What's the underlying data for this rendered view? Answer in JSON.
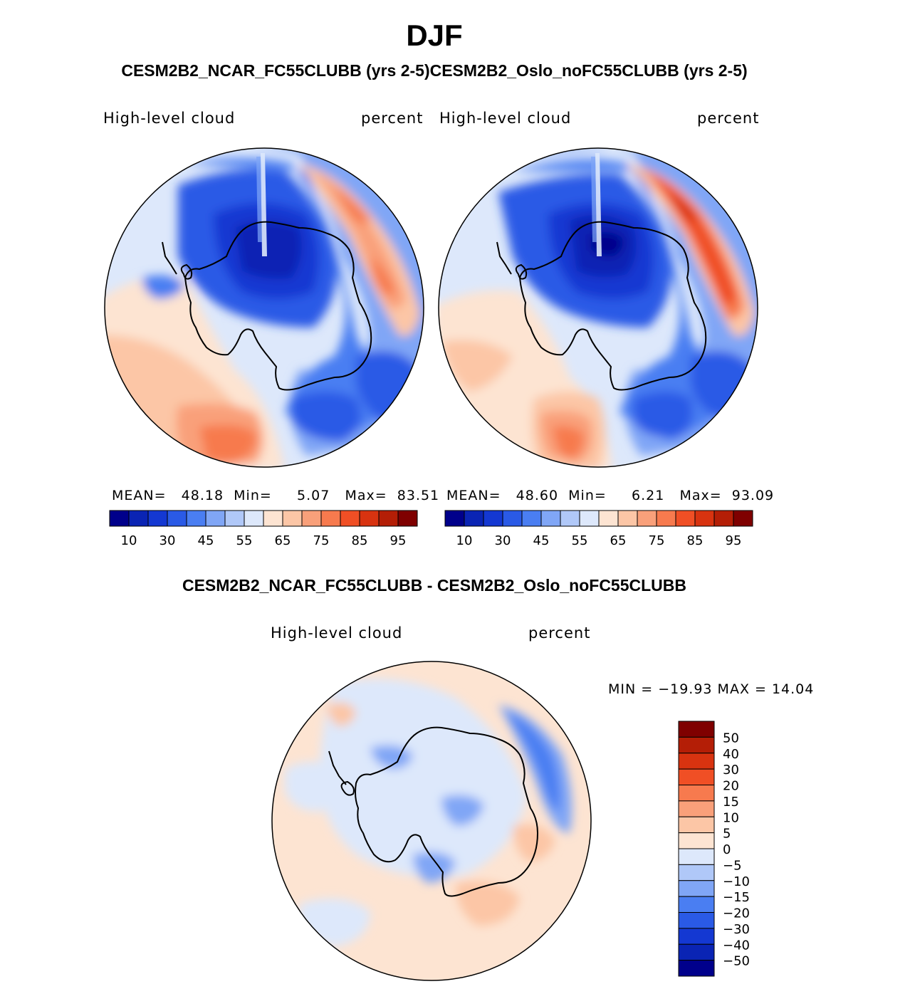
{
  "season": "DJF",
  "header": {
    "case_title": "CESM2B2_NCAR_FC55CLUBB (yrs 2-5)CESM2B2_Oslo_noFC55CLUBB (yrs 2-5)",
    "diff_title": "CESM2B2_NCAR_FC55CLUBB - CESM2B2_Oslo_noFC55CLUBB"
  },
  "panels": [
    {
      "variable": "High-level cloud",
      "units": "percent",
      "mean_label": "MEAN=",
      "mean_value": "48.18",
      "min_label": "Min=",
      "min_value": "5.07",
      "max_label": "Max=",
      "max_value": "83.51"
    },
    {
      "variable": "High-level cloud",
      "units": "percent",
      "mean_label": "MEAN=",
      "mean_value": "48.60",
      "min_label": "Min=",
      "min_value": "6.21",
      "max_label": "Max=",
      "max_value": "93.09"
    }
  ],
  "diff_panel": {
    "variable": "High-level cloud",
    "units": "percent",
    "stats_text": "MIN = −19.93 MAX =   14.04"
  },
  "colorbar_abs": {
    "colors": [
      "#00008b",
      "#0a24b4",
      "#1438d2",
      "#2a5ae6",
      "#4a7ef2",
      "#80a6f6",
      "#b0c8f8",
      "#dde8fb",
      "#fde4d2",
      "#fcc6a6",
      "#f9a07a",
      "#f77a4e",
      "#f04f25",
      "#d83310",
      "#b41e06",
      "#7f0000"
    ],
    "tick_labels": [
      "10",
      "30",
      "45",
      "55",
      "65",
      "75",
      "85",
      "95"
    ]
  },
  "colorbar_diff": {
    "colors": [
      "#00008b",
      "#0a24b4",
      "#1438d2",
      "#2a5ae6",
      "#4a7ef2",
      "#80a6f6",
      "#b0c8f8",
      "#dde8fb",
      "#fde4d2",
      "#fcc6a6",
      "#f9a07a",
      "#f77a4e",
      "#f04f25",
      "#d83310",
      "#b41e06",
      "#7f0000"
    ],
    "tick_labels": [
      "50",
      "40",
      "30",
      "20",
      "15",
      "10",
      "5",
      "0",
      "−5",
      "−10",
      "−15",
      "−20",
      "−30",
      "−40",
      "−50"
    ]
  }
}
